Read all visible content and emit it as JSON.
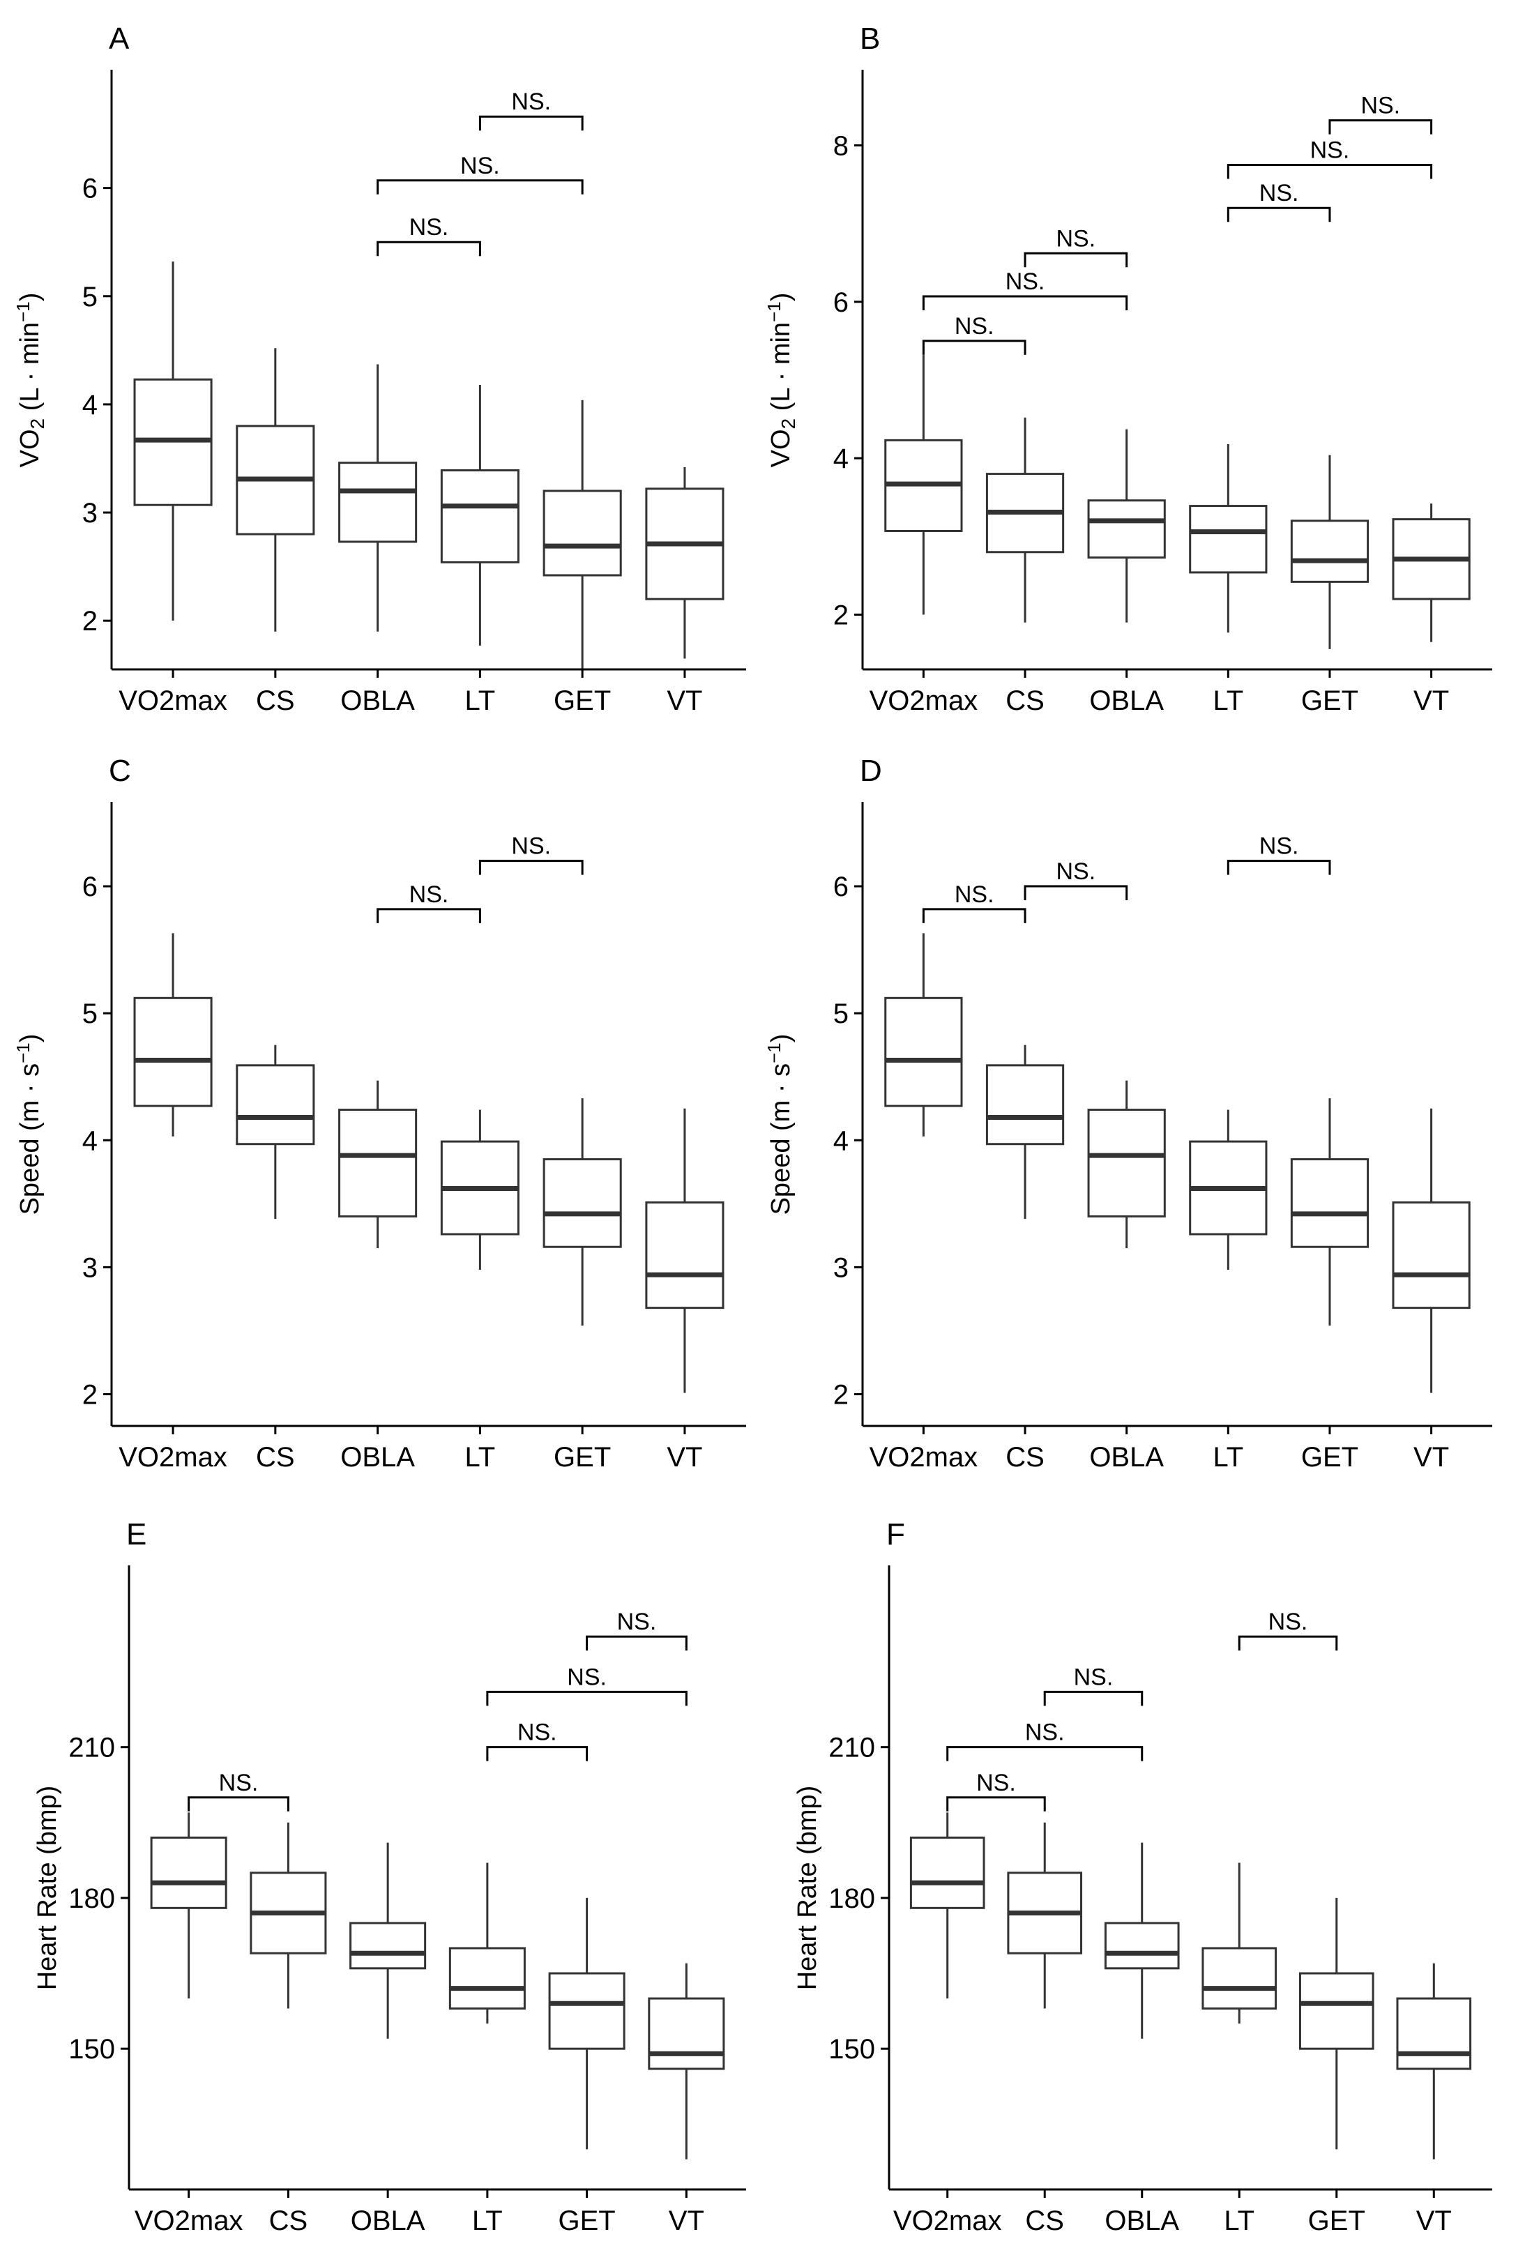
{
  "figure": {
    "categories": [
      "VO2max",
      "CS",
      "OBLA",
      "LT",
      "GET",
      "VT"
    ],
    "colors": {
      "box_stroke": "#333333",
      "axis": "#000000",
      "background": "#ffffff"
    }
  },
  "chart_data": [
    {
      "type": "box",
      "panel": "A",
      "ylabel": "VO₂ (L·min⁻¹)",
      "ylabel_base": "VO",
      "ylabel_sub": "2",
      "ylabel_rest": " (L · min",
      "ylabel_sup": "−1",
      "ylabel_close": ")",
      "ylim": [
        1.55,
        6.9
      ],
      "yticks": [
        2,
        3,
        4,
        5,
        6
      ],
      "boxes": [
        {
          "category": "VO2max",
          "min": 2.0,
          "q1": 3.07,
          "median": 3.67,
          "q3": 4.23,
          "max": 5.32
        },
        {
          "category": "CS",
          "min": 1.9,
          "q1": 2.8,
          "median": 3.31,
          "q3": 3.8,
          "max": 4.52
        },
        {
          "category": "OBLA",
          "min": 1.9,
          "q1": 2.73,
          "median": 3.2,
          "q3": 3.46,
          "max": 4.37
        },
        {
          "category": "LT",
          "min": 1.77,
          "q1": 2.54,
          "median": 3.06,
          "q3": 3.39,
          "max": 4.18
        },
        {
          "category": "GET",
          "min": 1.56,
          "q1": 2.42,
          "median": 2.69,
          "q3": 3.2,
          "max": 4.04
        },
        {
          "category": "VT",
          "min": 1.65,
          "q1": 2.2,
          "median": 2.71,
          "q3": 3.22,
          "max": 3.42
        }
      ],
      "annotations": [
        {
          "from": "OBLA",
          "to": "LT",
          "y": 5.5,
          "label": "NS."
        },
        {
          "from": "OBLA",
          "to": "GET",
          "y": 6.07,
          "label": "NS."
        },
        {
          "from": "LT",
          "to": "GET",
          "y": 6.66,
          "label": "NS."
        }
      ]
    },
    {
      "type": "box",
      "panel": "B",
      "ylabel": "VO₂ (L·min⁻¹)",
      "ylabel_base": "VO",
      "ylabel_sub": "2",
      "ylabel_rest": " (L · min",
      "ylabel_sup": "−1",
      "ylabel_close": ")",
      "ylim": [
        1.3,
        8.7
      ],
      "yticks": [
        2,
        4,
        6,
        8
      ],
      "boxes": [
        {
          "category": "VO2max",
          "min": 2.0,
          "q1": 3.07,
          "median": 3.67,
          "q3": 4.23,
          "max": 5.32
        },
        {
          "category": "CS",
          "min": 1.9,
          "q1": 2.8,
          "median": 3.31,
          "q3": 3.8,
          "max": 4.52
        },
        {
          "category": "OBLA",
          "min": 1.9,
          "q1": 2.73,
          "median": 3.2,
          "q3": 3.46,
          "max": 4.37
        },
        {
          "category": "LT",
          "min": 1.77,
          "q1": 2.54,
          "median": 3.06,
          "q3": 3.39,
          "max": 4.18
        },
        {
          "category": "GET",
          "min": 1.56,
          "q1": 2.42,
          "median": 2.69,
          "q3": 3.2,
          "max": 4.04
        },
        {
          "category": "VT",
          "min": 1.65,
          "q1": 2.2,
          "median": 2.71,
          "q3": 3.22,
          "max": 3.42
        }
      ],
      "annotations": [
        {
          "from": "VO2max",
          "to": "CS",
          "y": 5.5,
          "label": "NS."
        },
        {
          "from": "VO2max",
          "to": "OBLA",
          "y": 6.07,
          "label": "NS."
        },
        {
          "from": "CS",
          "to": "OBLA",
          "y": 6.62,
          "label": "NS."
        },
        {
          "from": "LT",
          "to": "GET",
          "y": 7.2,
          "label": "NS."
        },
        {
          "from": "LT",
          "to": "VT",
          "y": 7.75,
          "label": "NS."
        },
        {
          "from": "GET",
          "to": "VT",
          "y": 8.32,
          "label": "NS."
        }
      ]
    },
    {
      "type": "box",
      "panel": "C",
      "ylabel": "Speed (m·s⁻¹)",
      "ylabel_base": "Speed (m · s",
      "ylabel_sub": "",
      "ylabel_rest": "",
      "ylabel_sup": "−1",
      "ylabel_close": ")",
      "ylim": [
        1.75,
        6.5
      ],
      "yticks": [
        2,
        3,
        4,
        5,
        6
      ],
      "boxes": [
        {
          "category": "VO2max",
          "min": 4.03,
          "q1": 4.27,
          "median": 4.63,
          "q3": 5.12,
          "max": 5.63
        },
        {
          "category": "CS",
          "min": 3.38,
          "q1": 3.97,
          "median": 4.18,
          "q3": 4.59,
          "max": 4.75
        },
        {
          "category": "OBLA",
          "min": 3.15,
          "q1": 3.4,
          "median": 3.88,
          "q3": 4.24,
          "max": 4.47
        },
        {
          "category": "LT",
          "min": 2.98,
          "q1": 3.26,
          "median": 3.62,
          "q3": 3.99,
          "max": 4.24
        },
        {
          "category": "GET",
          "min": 2.54,
          "q1": 3.16,
          "median": 3.42,
          "q3": 3.85,
          "max": 4.33
        },
        {
          "category": "VT",
          "min": 2.01,
          "q1": 2.68,
          "median": 2.94,
          "q3": 3.51,
          "max": 4.25
        }
      ],
      "annotations": [
        {
          "from": "OBLA",
          "to": "LT",
          "y": 5.82,
          "label": "NS."
        },
        {
          "from": "LT",
          "to": "GET",
          "y": 6.2,
          "label": "NS."
        }
      ]
    },
    {
      "type": "box",
      "panel": "D",
      "ylabel": "Speed (m·s⁻¹)",
      "ylabel_base": "Speed (m · s",
      "ylabel_sub": "",
      "ylabel_rest": "",
      "ylabel_sup": "−1",
      "ylabel_close": ")",
      "ylim": [
        1.75,
        6.5
      ],
      "yticks": [
        2,
        3,
        4,
        5,
        6
      ],
      "boxes": [
        {
          "category": "VO2max",
          "min": 4.03,
          "q1": 4.27,
          "median": 4.63,
          "q3": 5.12,
          "max": 5.63
        },
        {
          "category": "CS",
          "min": 3.38,
          "q1": 3.97,
          "median": 4.18,
          "q3": 4.59,
          "max": 4.75
        },
        {
          "category": "OBLA",
          "min": 3.15,
          "q1": 3.4,
          "median": 3.88,
          "q3": 4.24,
          "max": 4.47
        },
        {
          "category": "LT",
          "min": 2.98,
          "q1": 3.26,
          "median": 3.62,
          "q3": 3.99,
          "max": 4.24
        },
        {
          "category": "GET",
          "min": 2.54,
          "q1": 3.16,
          "median": 3.42,
          "q3": 3.85,
          "max": 4.33
        },
        {
          "category": "VT",
          "min": 2.01,
          "q1": 2.68,
          "median": 2.94,
          "q3": 3.51,
          "max": 4.25
        }
      ],
      "annotations": [
        {
          "from": "VO2max",
          "to": "CS",
          "y": 5.82,
          "label": "NS."
        },
        {
          "from": "CS",
          "to": "OBLA",
          "y": 6.0,
          "label": "NS."
        },
        {
          "from": "LT",
          "to": "GET",
          "y": 6.2,
          "label": "NS."
        }
      ]
    },
    {
      "type": "box",
      "panel": "E",
      "ylabel": "Heart Rate (bmp)",
      "ylabel_base": "Heart Rate (bmp)",
      "ylabel_sub": "",
      "ylabel_rest": "",
      "ylabel_sup": "",
      "ylabel_close": "",
      "ylim": [
        122,
        242
      ],
      "yticks": [
        150,
        180,
        210
      ],
      "boxes": [
        {
          "category": "VO2max",
          "min": 160,
          "q1": 178,
          "median": 183,
          "q3": 192,
          "max": 197
        },
        {
          "category": "CS",
          "min": 158,
          "q1": 169,
          "median": 177,
          "q3": 185,
          "max": 195
        },
        {
          "category": "OBLA",
          "min": 152,
          "q1": 166,
          "median": 169,
          "q3": 175,
          "max": 191
        },
        {
          "category": "LT",
          "min": 155,
          "q1": 158,
          "median": 162,
          "q3": 170,
          "max": 187
        },
        {
          "category": "GET",
          "min": 130,
          "q1": 150,
          "median": 159,
          "q3": 165,
          "max": 180
        },
        {
          "category": "VT",
          "min": 128,
          "q1": 146,
          "median": 149,
          "q3": 160,
          "max": 167
        }
      ],
      "annotations": [
        {
          "from": "VO2max",
          "to": "CS",
          "y": 200,
          "label": "NS."
        },
        {
          "from": "LT",
          "to": "GET",
          "y": 210,
          "label": "NS."
        },
        {
          "from": "LT",
          "to": "VT",
          "y": 221,
          "label": "NS."
        },
        {
          "from": "GET",
          "to": "VT",
          "y": 232,
          "label": "NS."
        }
      ]
    },
    {
      "type": "box",
      "panel": "F",
      "ylabel": "Heart Rate (bmp)",
      "ylabel_base": "Heart Rate (bmp)",
      "ylabel_sub": "",
      "ylabel_rest": "",
      "ylabel_sup": "",
      "ylabel_close": "",
      "ylim": [
        122,
        242
      ],
      "yticks": [
        150,
        180,
        210
      ],
      "boxes": [
        {
          "category": "VO2max",
          "min": 160,
          "q1": 178,
          "median": 183,
          "q3": 192,
          "max": 197
        },
        {
          "category": "CS",
          "min": 158,
          "q1": 169,
          "median": 177,
          "q3": 185,
          "max": 195
        },
        {
          "category": "OBLA",
          "min": 152,
          "q1": 166,
          "median": 169,
          "q3": 175,
          "max": 191
        },
        {
          "category": "LT",
          "min": 155,
          "q1": 158,
          "median": 162,
          "q3": 170,
          "max": 187
        },
        {
          "category": "GET",
          "min": 130,
          "q1": 150,
          "median": 159,
          "q3": 165,
          "max": 180
        },
        {
          "category": "VT",
          "min": 128,
          "q1": 146,
          "median": 149,
          "q3": 160,
          "max": 167
        }
      ],
      "annotations": [
        {
          "from": "VO2max",
          "to": "CS",
          "y": 200,
          "label": "NS."
        },
        {
          "from": "VO2max",
          "to": "OBLA",
          "y": 210,
          "label": "NS."
        },
        {
          "from": "CS",
          "to": "OBLA",
          "y": 221,
          "label": "NS."
        },
        {
          "from": "LT",
          "to": "GET",
          "y": 232,
          "label": "NS."
        }
      ]
    }
  ]
}
